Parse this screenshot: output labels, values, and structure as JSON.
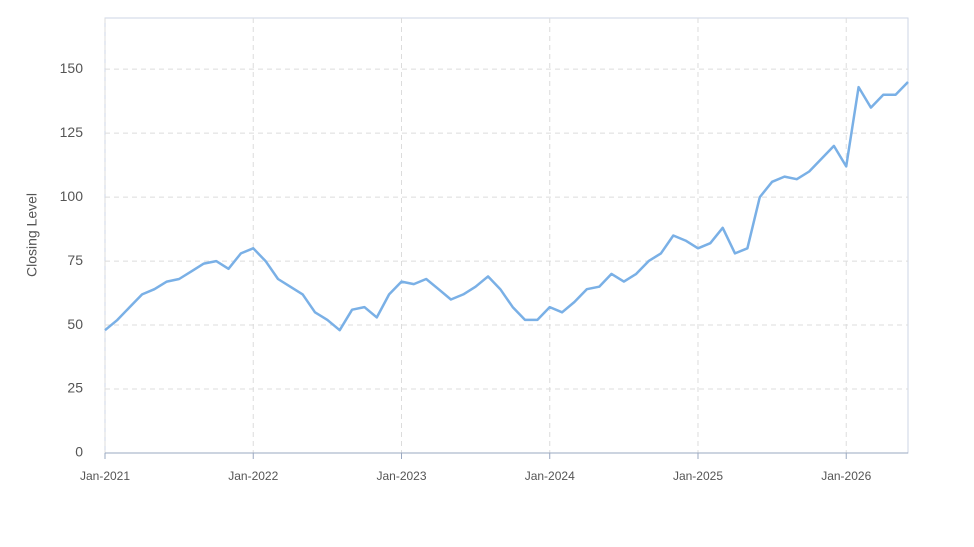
{
  "chart_data": {
    "type": "line",
    "y_label": "Closing Level",
    "x": [
      "2021-01",
      "2021-02",
      "2021-03",
      "2021-04",
      "2021-05",
      "2021-06",
      "2021-07",
      "2021-08",
      "2021-09",
      "2021-10",
      "2021-11",
      "2021-12",
      "2022-01",
      "2022-02",
      "2022-03",
      "2022-04",
      "2022-05",
      "2022-06",
      "2022-07",
      "2022-08",
      "2022-09",
      "2022-10",
      "2022-11",
      "2022-12",
      "2023-01",
      "2023-02",
      "2023-03",
      "2023-04",
      "2023-05",
      "2023-06",
      "2023-07",
      "2023-08",
      "2023-09",
      "2023-10",
      "2023-11",
      "2023-12",
      "2024-01",
      "2024-02",
      "2024-03",
      "2024-04",
      "2024-05",
      "2024-06",
      "2024-07",
      "2024-08",
      "2024-09",
      "2024-10",
      "2024-11",
      "2024-12",
      "2025-01",
      "2025-02",
      "2025-03",
      "2025-04",
      "2025-05",
      "2025-06",
      "2025-07",
      "2025-08",
      "2025-09",
      "2025-10",
      "2025-11",
      "2025-12",
      "2026-01",
      "2026-02",
      "2026-03",
      "2026-04",
      "2026-05",
      "2026-06"
    ],
    "series": [
      {
        "color": "#7ab0e6",
        "values": [
          48,
          52,
          57,
          62,
          64,
          67,
          68,
          71,
          74,
          75,
          72,
          78,
          80,
          75,
          68,
          65,
          62,
          55,
          52,
          48,
          56,
          57,
          53,
          62,
          67,
          66,
          68,
          64,
          60,
          62,
          65,
          69,
          64,
          57,
          52,
          52,
          57,
          55,
          59,
          64,
          65,
          70,
          67,
          70,
          75,
          78,
          85,
          83,
          80,
          82,
          88,
          78,
          80,
          100,
          106,
          108,
          107,
          110,
          115,
          120,
          112,
          143,
          135,
          140,
          140,
          145
        ]
      }
    ],
    "xlim": [
      "2021-01",
      "2026-06"
    ],
    "xticks": [
      {
        "value": "2021-01",
        "label": "Jan-2021"
      },
      {
        "value": "2022-01",
        "label": "Jan-2022"
      },
      {
        "value": "2023-01",
        "label": "Jan-2023"
      },
      {
        "value": "2024-01",
        "label": "Jan-2024"
      },
      {
        "value": "2025-01",
        "label": "Jan-2025"
      },
      {
        "value": "2026-01",
        "label": "Jan-2026"
      }
    ],
    "ylim": [
      0,
      170
    ],
    "yticks": [
      0,
      25,
      50,
      75,
      100,
      125,
      150
    ],
    "grid": true
  }
}
